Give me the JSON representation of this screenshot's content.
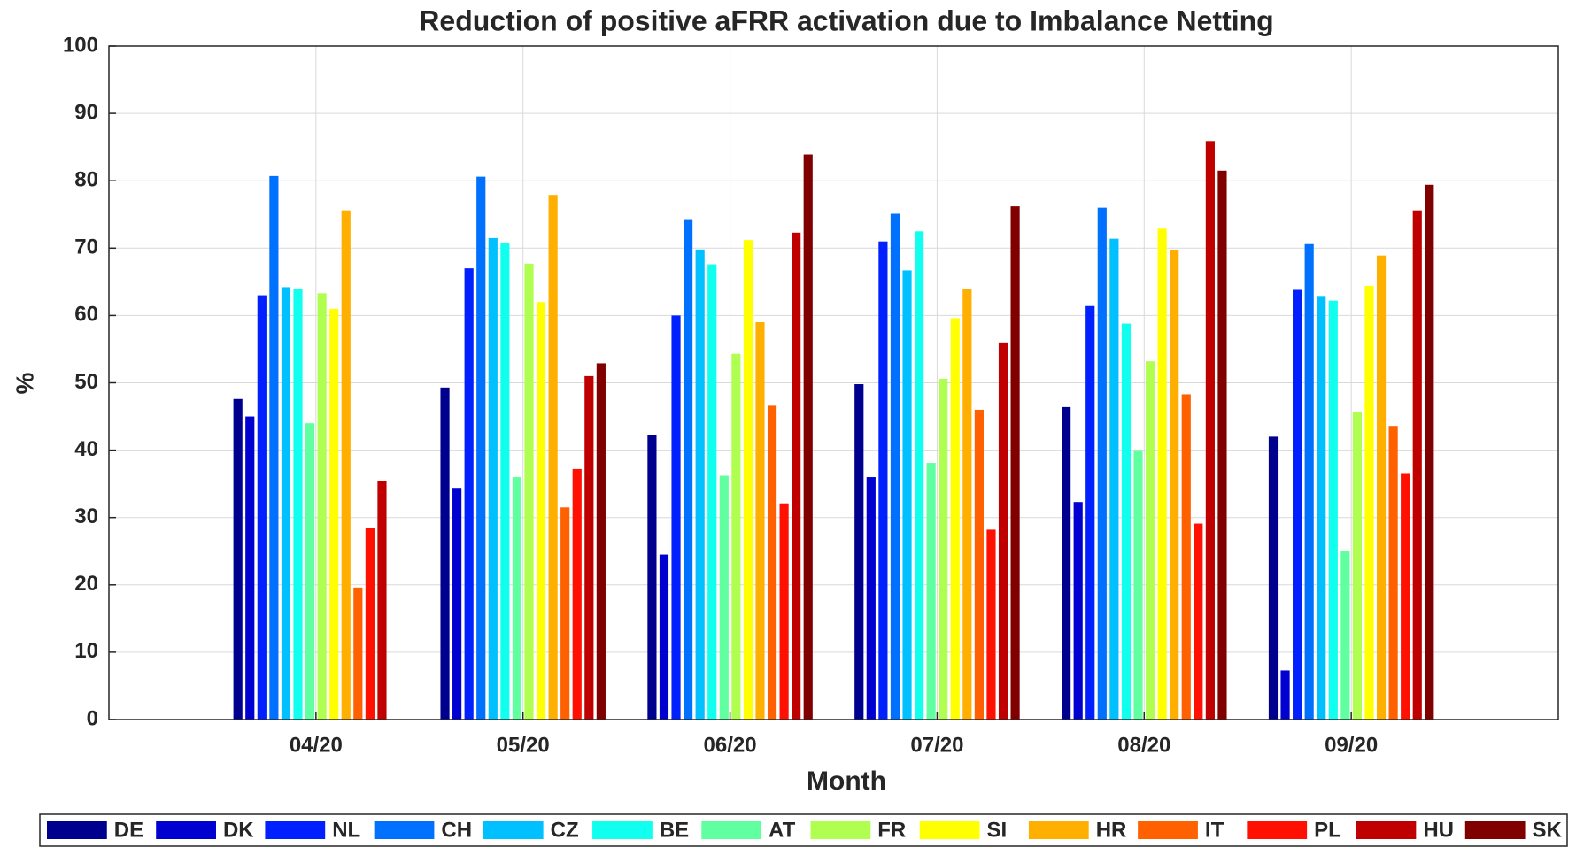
{
  "chart_data": {
    "type": "bar",
    "title": "Reduction of positive aFRR activation due to Imbalance Netting",
    "x_label": "Month",
    "y_label": "%",
    "categories": [
      "04/20",
      "05/20",
      "06/20",
      "07/20",
      "08/20",
      "09/20"
    ],
    "ylim": [
      0,
      100
    ],
    "yticks": [
      0,
      10,
      20,
      30,
      40,
      50,
      60,
      70,
      80,
      90,
      100
    ],
    "grid": true,
    "series": [
      {
        "name": "DE",
        "color": "#00008f",
        "values": [
          47.6,
          49.3,
          42.2,
          49.8,
          46.4,
          42.0
        ]
      },
      {
        "name": "DK",
        "color": "#0000d0",
        "values": [
          45.0,
          34.4,
          24.5,
          36.0,
          32.3,
          7.3
        ]
      },
      {
        "name": "NL",
        "color": "#0020ff",
        "values": [
          63.0,
          67.0,
          60.0,
          71.0,
          61.4,
          63.8
        ]
      },
      {
        "name": "CH",
        "color": "#0070ff",
        "values": [
          80.7,
          80.6,
          74.3,
          75.1,
          76.0,
          70.6
        ]
      },
      {
        "name": "CZ",
        "color": "#00c0ff",
        "values": [
          64.2,
          71.5,
          69.8,
          66.7,
          71.4,
          62.9
        ]
      },
      {
        "name": "BE",
        "color": "#10ffef",
        "values": [
          64.0,
          70.8,
          67.6,
          72.5,
          58.8,
          62.2
        ]
      },
      {
        "name": "AT",
        "color": "#60ff9f",
        "values": [
          44.0,
          36.0,
          36.2,
          38.1,
          40.0,
          25.1
        ]
      },
      {
        "name": "FR",
        "color": "#b0ff50",
        "values": [
          63.3,
          67.7,
          54.3,
          50.6,
          53.2,
          45.7
        ]
      },
      {
        "name": "SI",
        "color": "#ffff00",
        "values": [
          61.0,
          62.0,
          71.2,
          59.6,
          72.9,
          64.4
        ]
      },
      {
        "name": "HR",
        "color": "#ffaf00",
        "values": [
          75.6,
          77.9,
          59.0,
          63.9,
          69.7,
          68.9
        ]
      },
      {
        "name": "IT",
        "color": "#ff6000",
        "values": [
          19.6,
          31.5,
          46.6,
          46.0,
          48.3,
          43.6
        ]
      },
      {
        "name": "PL",
        "color": "#ff1000",
        "values": [
          28.4,
          37.2,
          32.1,
          28.2,
          29.1,
          36.6
        ]
      },
      {
        "name": "HU",
        "color": "#c00000",
        "values": [
          35.4,
          51.0,
          72.3,
          56.0,
          85.9,
          75.6
        ]
      },
      {
        "name": "SK",
        "color": "#800000",
        "values": [
          null,
          52.9,
          83.9,
          76.2,
          81.5,
          79.4
        ]
      }
    ]
  }
}
